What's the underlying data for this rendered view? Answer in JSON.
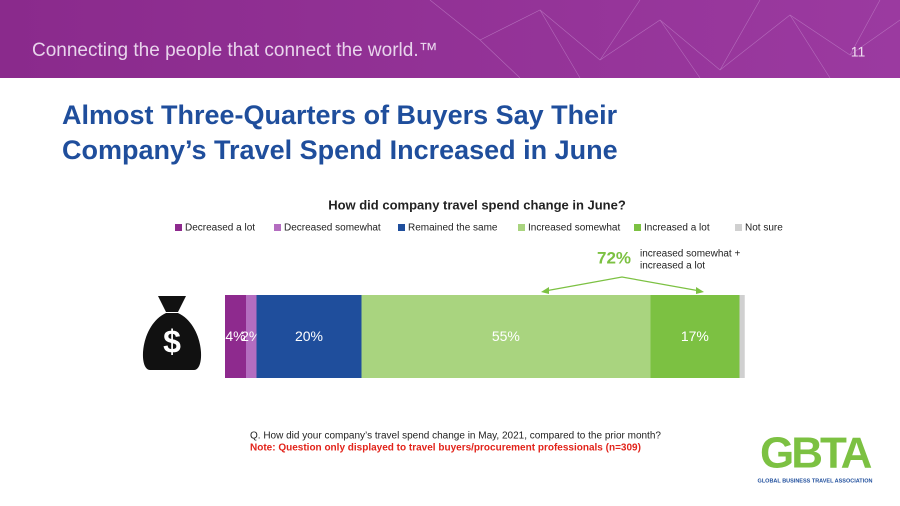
{
  "header": {
    "tagline": "Connecting the people that connect the world.™",
    "page": "11"
  },
  "chart_data": {
    "type": "stacked-bar",
    "slide_title": [
      "Almost Three-Quarters of Buyers Say Their",
      "Company’s Travel Spend Increased in June"
    ],
    "title": "How did company travel spend change in June?",
    "categories": [
      null
    ],
    "xlim": [
      0,
      100
    ],
    "series": [
      {
        "name": "Decreased a lot",
        "color": "#8e2a8e",
        "values": [
          4
        ],
        "value_labels": [
          "4%"
        ]
      },
      {
        "name": "Decreased somewhat",
        "color": "#b46dc0",
        "values": [
          2
        ],
        "value_labels": [
          "2%"
        ]
      },
      {
        "name": "Remained the same",
        "color": "#1f4e9c",
        "values": [
          20
        ],
        "value_labels": [
          "20%"
        ]
      },
      {
        "name": "Increased somewhat",
        "color": "#a9d47f",
        "values": [
          55
        ],
        "value_labels": [
          "55%"
        ]
      },
      {
        "name": "Increased a lot",
        "color": "#7cc142",
        "values": [
          17
        ],
        "value_labels": [
          "17%"
        ]
      },
      {
        "name": "Not sure",
        "color": "#d0d0d0",
        "values": [
          1
        ]
      }
    ],
    "annotation": {
      "label": "72%",
      "text": [
        "increased somewhat +",
        "increased a lot"
      ]
    },
    "footnotes": [
      "Q. How did your company’s travel spend change in May, 2021, compared to the prior month?",
      "Note: Question only displayed to travel buyers/procurement professionals (n=309)"
    ]
  },
  "logo": {
    "mark": "GBTA",
    "text": "GLOBAL BUSINESS TRAVEL ASSOCIATION"
  }
}
